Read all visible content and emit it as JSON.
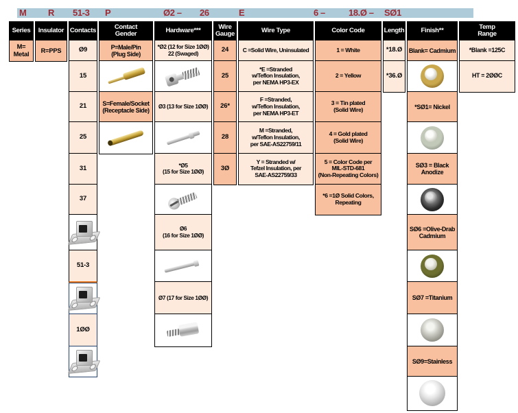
{
  "colors": {
    "accent_red": "#9e2a33",
    "bar_blue": "#aecbd9",
    "cell_dark": "#f8c09e",
    "cell_light": "#fdeadd",
    "header_bg": "#000000",
    "header_text": "#ffffff",
    "highlight_orange": "#e3761f",
    "highlight_navy": "#24416b"
  },
  "part_number": {
    "segments": [
      "M",
      "R",
      "51-3",
      "P",
      "Ø2 –",
      "26",
      "E",
      "6 –",
      "18.Ø –",
      "SØ1"
    ]
  },
  "columns": [
    {
      "key": "series",
      "header": "Series",
      "shade": "dark",
      "cells": [
        {
          "label": "M=\nMetal"
        }
      ]
    },
    {
      "key": "insulator",
      "header": "Insulator",
      "shade": "dark",
      "cells": [
        {
          "label": "R=PPS"
        }
      ]
    },
    {
      "key": "contacts",
      "header": "Contacts",
      "shade": "light",
      "cells": [
        {
          "label": "Ø9"
        },
        {
          "label": "15"
        },
        {
          "label": "21"
        },
        {
          "label": "25"
        },
        {
          "label": "31"
        },
        {
          "label": "37"
        },
        {
          "image": "metal-connector-image"
        },
        {
          "label": "51-3",
          "underline": "orange"
        },
        {
          "image": "metal-connector-image",
          "frame": "navy"
        },
        {
          "label": "1ØØ",
          "frame": "navy"
        },
        {
          "image": "metal-connector-image",
          "frame": "navy"
        }
      ]
    },
    {
      "key": "contact-gender",
      "header": "Contact\nGender",
      "shade": "dark",
      "cells": [
        {
          "label": "P=Male/Pin\n(Plug Side)"
        },
        {
          "image": "gold-pin-contact-image"
        },
        {
          "label": "S=Female/Socket\n(Receptacle Side)"
        },
        {
          "image": "gold-socket-contact-image"
        }
      ]
    },
    {
      "key": "hardware",
      "header": "Hardware***",
      "shade": "light",
      "cells": [
        {
          "label": "*Ø2 (12 for Size 1ØØ)\n22 (Swaged)"
        },
        {
          "image": "jackscrew-image"
        },
        {
          "label": "Ø3 (13 for Size 1ØØ)"
        },
        {
          "image": "guide-pin-image"
        },
        {
          "label": "*Ø5\n(15 for Size 1ØØ)"
        },
        {
          "image": "slotted-screw-image"
        },
        {
          "label": "Ø6\n(16 for Size 1ØØ)"
        },
        {
          "image": "long-guide-pin-image"
        },
        {
          "label": "Ø7 (17 for Size 1ØØ)"
        },
        {
          "image": "threaded-standoff-image"
        }
      ]
    },
    {
      "key": "wire-gauge",
      "header": "Wire\nGauge",
      "shade": "dark",
      "cells": [
        {
          "label": "24"
        },
        {
          "label": "25"
        },
        {
          "label": "26*"
        },
        {
          "label": "28"
        },
        {
          "label": "3Ø"
        }
      ]
    },
    {
      "key": "wire-type",
      "header": "Wire Type",
      "shade": "light",
      "cells": [
        {
          "label": "C =Solid Wire, Uninsulated"
        },
        {
          "label": "*E =Stranded\nw/Teflon Insulation,\nper NEMA HP3-EX"
        },
        {
          "label": "F =Stranded,\nw/Teflon Insulation,\nper NEMA HP3-ET"
        },
        {
          "label": "M =Stranded,\nw/Teflon Insulation,\nper SAE-AS22759/11"
        },
        {
          "label": "Y = Stranded w/\nTefzel Insulation, per\nSAE-AS22759/33"
        }
      ]
    },
    {
      "key": "color-code",
      "header": "Color Code",
      "shade": "dark",
      "cells": [
        {
          "label": "1 = White"
        },
        {
          "label": "2 = Yellow"
        },
        {
          "label": "3 = Tin plated\n(Solid Wire)"
        },
        {
          "label": "4 = Gold plated\n(Solid Wire)"
        },
        {
          "label": "5 = Color Code per\nMIL-STD-681\n(Non-Repeating Colors)"
        },
        {
          "label": "*6 =1Ø Solid Colors,\nRepeating"
        }
      ]
    },
    {
      "key": "length",
      "header": "Length",
      "shade": "light",
      "cells": [
        {
          "label": "*18.Ø"
        },
        {
          "label": "*36.Ø"
        }
      ]
    },
    {
      "key": "finish",
      "header": "Finish**",
      "shade": "dark",
      "cells": [
        {
          "label": "Blank= Cadmium"
        },
        {
          "image": "cadmium-ball-image"
        },
        {
          "label": "*SØ1= Nickel"
        },
        {
          "image": "nickel-ball-image"
        },
        {
          "label": "SØ3 = Black\nAnodize"
        },
        {
          "image": "black-anodize-ball-image"
        },
        {
          "label": "SØ6 =Olive-Drab\nCadmium"
        },
        {
          "image": "olive-drab-ball-image"
        },
        {
          "label": "SØ7 =Titanium"
        },
        {
          "image": "titanium-ball-image"
        },
        {
          "label": "SØ9=Stainless"
        },
        {
          "image": "stainless-ball-image"
        }
      ]
    },
    {
      "key": "temp-range",
      "header": "Temp\nRange",
      "shade": "light",
      "cells": [
        {
          "label": "*Blank =125C"
        },
        {
          "label": "HT = 2ØØC"
        }
      ]
    }
  ]
}
